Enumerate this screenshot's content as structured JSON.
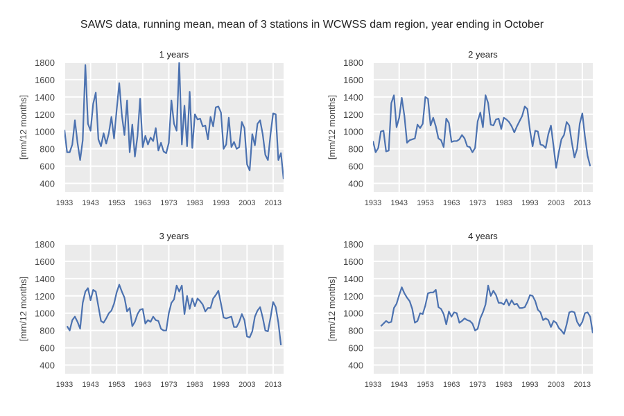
{
  "title": "SAWS data, running mean, mean of 3 stations in WCWSS dam region, year ending in October",
  "style": {
    "axes_bg": "#ebebeb",
    "grid_color": "#ffffff",
    "line_color": "#4c72b0"
  },
  "chart_data": [
    {
      "type": "line",
      "title": "1 years",
      "ylabel": "[mm/12 months]",
      "xlim": [
        1933,
        2017
      ],
      "ylim": [
        300,
        1800
      ],
      "xticks": [
        1933,
        1943,
        1953,
        1963,
        1973,
        1983,
        1993,
        2003,
        2013
      ],
      "yticks": [
        400,
        600,
        800,
        1000,
        1200,
        1400,
        1600,
        1800
      ],
      "x_start": 1933,
      "values": [
        1020,
        760,
        760,
        850,
        1130,
        870,
        670,
        900,
        1770,
        1090,
        1010,
        1320,
        1450,
        910,
        830,
        980,
        860,
        980,
        1170,
        920,
        1250,
        1560,
        1190,
        960,
        1360,
        760,
        1080,
        710,
        950,
        1380,
        820,
        950,
        850,
        930,
        890,
        1040,
        780,
        870,
        770,
        750,
        870,
        1360,
        1090,
        1010,
        1810,
        850,
        1300,
        830,
        1460,
        810,
        1200,
        1140,
        1150,
        1060,
        1070,
        910,
        1170,
        1060,
        1280,
        1290,
        1220,
        800,
        850,
        1160,
        820,
        880,
        800,
        820,
        1110,
        1040,
        620,
        550,
        970,
        840,
        1090,
        1130,
        970,
        730,
        670,
        970,
        1210,
        1200,
        670,
        750,
        450
      ]
    },
    {
      "type": "line",
      "title": "2 years",
      "ylabel": "[mm/12 months]",
      "xlim": [
        1933,
        2017
      ],
      "ylim": [
        300,
        1800
      ],
      "xticks": [
        1933,
        1943,
        1953,
        1963,
        1973,
        1983,
        1993,
        2003,
        2013
      ],
      "yticks": [
        400,
        600,
        800,
        1000,
        1200,
        1400,
        1600,
        1800
      ],
      "x_start": 1933,
      "values": [
        890,
        760,
        810,
        1000,
        1010,
        770,
        780,
        1330,
        1420,
        1050,
        1160,
        1390,
        1180,
        870,
        900,
        910,
        920,
        1080,
        1040,
        1090,
        1400,
        1380,
        1070,
        1160,
        1060,
        920,
        900,
        820,
        1150,
        1100,
        880,
        890,
        890,
        910,
        960,
        920,
        830,
        820,
        760,
        810,
        1120,
        1220,
        1050,
        1420,
        1330,
        1080,
        1070,
        1140,
        1150,
        1030,
        1160,
        1140,
        1110,
        1060,
        990,
        1060,
        1120,
        1180,
        1290,
        1260,
        1010,
        830,
        1010,
        1000,
        850,
        840,
        810,
        970,
        1070,
        830,
        580,
        760,
        910,
        960,
        1110,
        1070,
        870,
        700,
        800,
        1090,
        1210,
        940,
        720,
        600
      ]
    },
    {
      "type": "line",
      "title": "3 years",
      "ylabel": "[mm/12 months]",
      "xlim": [
        1933,
        2017
      ],
      "ylim": [
        300,
        1800
      ],
      "xticks": [
        1933,
        1943,
        1953,
        1963,
        1973,
        1983,
        1993,
        2003,
        2013
      ],
      "yticks": [
        400,
        600,
        800,
        1000,
        1200,
        1400,
        1600,
        1800
      ],
      "x_start": 1934,
      "values": [
        850,
        800,
        920,
        960,
        900,
        820,
        1120,
        1250,
        1290,
        1150,
        1270,
        1250,
        1080,
        910,
        890,
        940,
        1000,
        1030,
        1110,
        1240,
        1330,
        1250,
        1180,
        1020,
        1060,
        850,
        900,
        990,
        1040,
        1050,
        880,
        920,
        900,
        960,
        920,
        910,
        820,
        800,
        800,
        1000,
        1120,
        1160,
        1320,
        1250,
        1320,
        990,
        1200,
        1050,
        1170,
        1080,
        1170,
        1140,
        1100,
        1020,
        1060,
        1060,
        1170,
        1210,
        1260,
        1110,
        950,
        940,
        950,
        960,
        840,
        840,
        900,
        990,
        920,
        730,
        720,
        790,
        960,
        1030,
        1070,
        950,
        800,
        790,
        950,
        1130,
        1070,
        890,
        630
      ]
    },
    {
      "type": "line",
      "title": "4 years",
      "ylabel": "[mm/12 months]",
      "xlim": [
        1933,
        2017
      ],
      "ylim": [
        300,
        1800
      ],
      "xticks": [
        1933,
        1943,
        1953,
        1963,
        1973,
        1983,
        1993,
        2003,
        2013
      ],
      "yticks": [
        400,
        600,
        800,
        1000,
        1200,
        1400,
        1600,
        1800
      ],
      "x_start": 1936,
      "values": [
        850,
        880,
        910,
        890,
        900,
        1060,
        1110,
        1210,
        1300,
        1230,
        1180,
        1140,
        1050,
        890,
        910,
        1000,
        990,
        1090,
        1230,
        1240,
        1240,
        1270,
        1070,
        1050,
        990,
        870,
        1020,
        960,
        1010,
        1000,
        890,
        910,
        940,
        920,
        910,
        880,
        800,
        820,
        940,
        1010,
        1100,
        1320,
        1200,
        1260,
        1210,
        1120,
        1120,
        1100,
        1160,
        1090,
        1150,
        1100,
        1110,
        1060,
        1060,
        1070,
        1130,
        1210,
        1200,
        1140,
        1040,
        1010,
        920,
        940,
        920,
        840,
        910,
        890,
        830,
        800,
        760,
        870,
        1010,
        1020,
        1010,
        900,
        850,
        900,
        1000,
        1010,
        960,
        770
      ]
    }
  ]
}
